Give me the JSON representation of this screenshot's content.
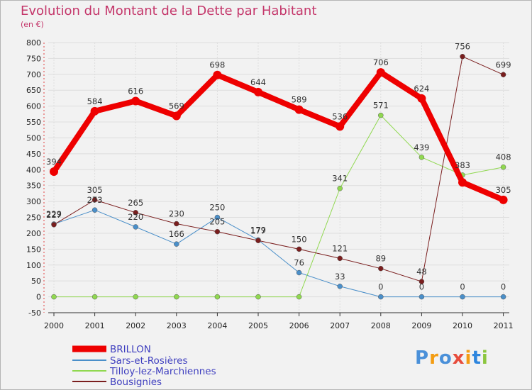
{
  "title": "Evolution du Montant de la Dette par Habitant",
  "subtitle": "(en €)",
  "logo": {
    "text": "Proxiti",
    "colors": [
      "#4a90d9",
      "#f39c12",
      "#4a90d9",
      "#e74c3c",
      "#f39c12",
      "#2e86de",
      "#8cc63f"
    ]
  },
  "chart_data": {
    "type": "line",
    "categories": [
      "2000",
      "2001",
      "2002",
      "2003",
      "2004",
      "2005",
      "2006",
      "2007",
      "2008",
      "2009",
      "2010",
      "2011"
    ],
    "ylim": [
      -50,
      800
    ],
    "yticks": [
      -50,
      0,
      50,
      100,
      150,
      200,
      250,
      300,
      350,
      400,
      450,
      500,
      550,
      600,
      650,
      700,
      750,
      800
    ],
    "grid": true,
    "legend_position": "bottom-left",
    "series": [
      {
        "name": "BRILLON",
        "color": "#ee0000",
        "width": 8,
        "values": [
          394,
          584,
          616,
          569,
          698,
          644,
          589,
          536,
          706,
          624,
          360,
          305
        ],
        "labels": [
          "394",
          "584",
          "616",
          "569",
          "698",
          "644",
          "589",
          "536",
          "706",
          "624",
          "",
          "305"
        ]
      },
      {
        "name": "Sars-et-Rosières",
        "color": "#4a8fc9",
        "width": 1,
        "values": [
          229,
          273,
          220,
          166,
          250,
          179,
          76,
          33,
          0,
          0,
          0,
          0
        ],
        "labels": [
          "229",
          "273",
          "220",
          "166",
          "250",
          "179",
          "76",
          "33",
          "0",
          "0",
          "0",
          "0"
        ]
      },
      {
        "name": "Tilloy-lez-Marchiennes",
        "color": "#90d850",
        "width": 1,
        "values": [
          0,
          0,
          0,
          0,
          0,
          0,
          0,
          341,
          571,
          439,
          383,
          408
        ],
        "labels": [
          "",
          "",
          "",
          "",
          "",
          "",
          "",
          "341",
          "571",
          "439",
          "383",
          "408"
        ]
      },
      {
        "name": "Bousignies",
        "color": "#7a1e1e",
        "width": 1,
        "values": [
          227,
          305,
          265,
          230,
          205,
          177,
          150,
          121,
          89,
          48,
          756,
          699
        ],
        "labels": [
          "227",
          "305",
          "265",
          "230",
          "205",
          "177",
          "150",
          "121",
          "89",
          "48",
          "756",
          "699"
        ]
      }
    ]
  }
}
